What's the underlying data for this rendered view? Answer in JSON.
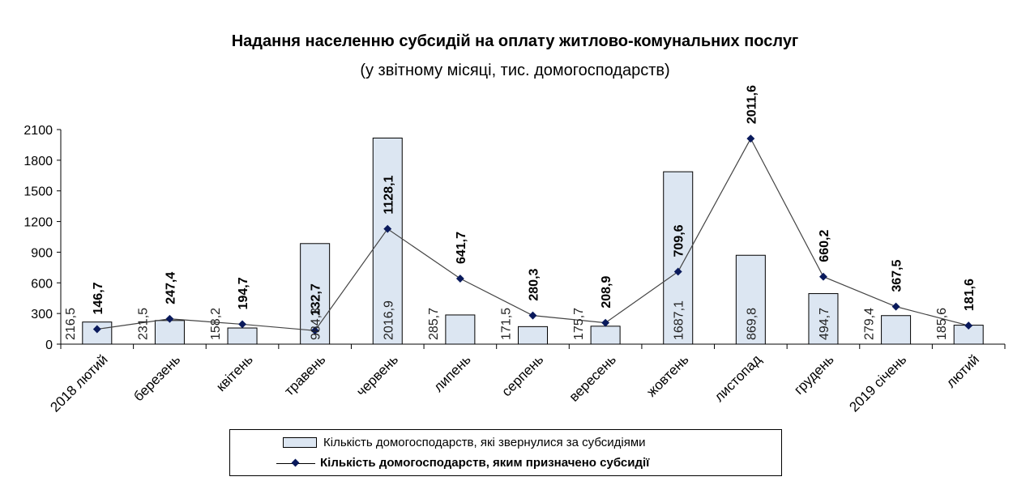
{
  "chart_data": {
    "type": "bar+line",
    "title": "Надання населенню субсидій на оплату житлово-комунальних послуг",
    "subtitle": "(у звітному місяці, тис. домогосподарств)",
    "categories": [
      "2018 лютий",
      "березень",
      "квітень",
      "травень",
      "червень",
      "липень",
      "серпень",
      "вересень",
      "жовтень",
      "листопад",
      "грудень",
      "2019 січень",
      "лютий"
    ],
    "series": [
      {
        "name": "Кількість домогосподарств, які звернулися за субсидіями",
        "type": "bar",
        "color": "#dce6f2",
        "values": [
          216.5,
          231.5,
          158.2,
          984.3,
          2016.9,
          285.7,
          171.5,
          175.7,
          1687.1,
          869.8,
          494.7,
          279.4,
          185.6
        ],
        "labels": [
          "216,5",
          "231,5",
          "158,2",
          "984,3",
          "2016,9",
          "285,7",
          "171,5",
          "175,7",
          "1687,1",
          "869,8",
          "494,7",
          "279,4",
          "185,6"
        ]
      },
      {
        "name": "Кількість домогосподарств, яким призначено субсидії",
        "type": "line",
        "color": "#0a1a5c",
        "values": [
          146.7,
          247.4,
          194.7,
          132.7,
          1128.1,
          641.7,
          280.3,
          208.9,
          709.6,
          2011.6,
          660.2,
          367.5,
          181.6
        ],
        "labels": [
          "146,7",
          "247,4",
          "194,7",
          "132,7",
          "1128,1",
          "641,7",
          "280,3",
          "208,9",
          "709,6",
          "2011,6",
          "660,2",
          "367,5",
          "181,6"
        ]
      }
    ],
    "ylim": [
      0,
      2100
    ],
    "yticks": [
      "0",
      "300",
      "600",
      "900",
      "1200",
      "1500",
      "1800",
      "2100"
    ],
    "grid": false,
    "legend": "bottom"
  }
}
